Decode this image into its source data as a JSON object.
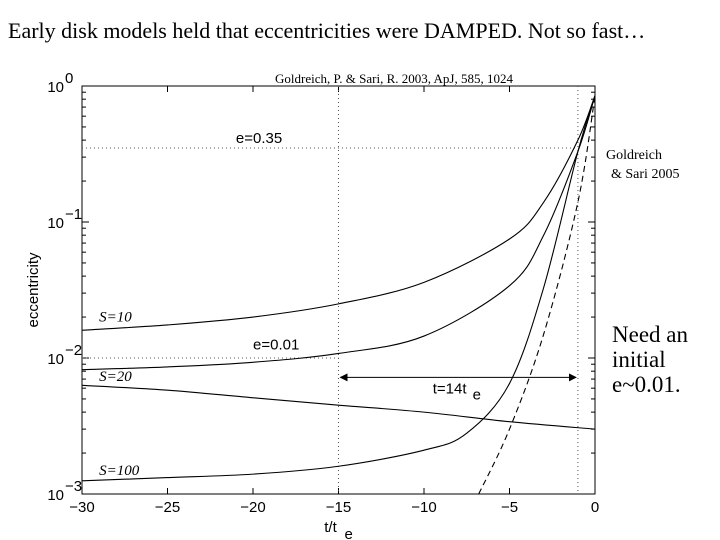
{
  "slide": {
    "title": "Early disk models held that eccentricities were DAMPED. Not so fast…",
    "reference_top": "Goldreich, P. & Sari, R. 2003, ApJ, 585, 1024",
    "reference_side": [
      "Goldreich",
      "& Sari 2005"
    ],
    "note_lines": [
      "Need an",
      "initial",
      "e~0.01."
    ]
  },
  "chart_data": {
    "type": "line",
    "xlabel": "t/t",
    "xlabel_sub": "e",
    "ylabel": "eccentricity",
    "xlim": [
      -30,
      0
    ],
    "ylim": [
      0.001,
      1
    ],
    "yscale": "log",
    "xticks": [
      -30,
      -25,
      -20,
      -15,
      -10,
      -5,
      0
    ],
    "yticks": [
      {
        "value": 0.001,
        "base": "10",
        "exp": "−3"
      },
      {
        "value": 0.01,
        "base": "10",
        "exp": "−2"
      },
      {
        "value": 0.1,
        "base": "10",
        "exp": "−1"
      },
      {
        "value": 1,
        "base": "10",
        "exp": "0"
      }
    ],
    "grid": false,
    "series": [
      {
        "name": "S=10",
        "style": "solid",
        "x": [
          -30,
          -25,
          -20,
          -15,
          -10,
          -5,
          -3,
          -1,
          0
        ],
        "y": [
          0.016,
          0.0175,
          0.02,
          0.025,
          0.036,
          0.075,
          0.14,
          0.4,
          0.85
        ]
      },
      {
        "name": "e=0.01",
        "style": "solid",
        "x": [
          -30,
          -25,
          -20,
          -15,
          -10,
          -5,
          -3,
          -1,
          0
        ],
        "y": [
          0.0082,
          0.0086,
          0.0093,
          0.0108,
          0.0145,
          0.034,
          0.08,
          0.33,
          0.85
        ]
      },
      {
        "name": "S=20",
        "style": "solid",
        "x": [
          -30,
          -25,
          -20,
          -15,
          -10,
          -5,
          0
        ],
        "y": [
          0.0063,
          0.0058,
          0.0051,
          0.0045,
          0.004,
          0.0034,
          0.003
        ]
      },
      {
        "name": "S=100",
        "style": "solid",
        "x": [
          -30,
          -25,
          -20,
          -15,
          -10,
          -7.5,
          -5,
          -3,
          -1,
          0
        ],
        "y": [
          0.00125,
          0.00132,
          0.0014,
          0.0016,
          0.0021,
          0.0028,
          0.0065,
          0.033,
          0.33,
          0.85
        ]
      },
      {
        "name": "",
        "style": "dashed",
        "x": [
          -6.8,
          -5,
          -3,
          -1,
          0
        ],
        "y": [
          0.001,
          0.003,
          0.015,
          0.14,
          0.85
        ]
      }
    ],
    "annotations": [
      {
        "text": "e=0.35",
        "type": "hline",
        "y": 0.35,
        "x_from": -30,
        "x_to": -1
      },
      {
        "text": "e=0.01",
        "x": -20,
        "y": 0.0115
      },
      {
        "text": "S=10",
        "x": -29,
        "y": 0.0185
      },
      {
        "text": "S=20",
        "x": -29,
        "y": 0.0068
      },
      {
        "text": "S=100",
        "x": -29,
        "y": 0.00138
      },
      {
        "text": "t=14t",
        "sub": "e",
        "type": "span",
        "x_from": -15,
        "x_to": -1,
        "y": 0.0072
      }
    ],
    "vlines": [
      -15,
      -1
    ],
    "hline_at_001": {
      "y": 0.01,
      "x_from": -30,
      "x_to": -15
    }
  }
}
